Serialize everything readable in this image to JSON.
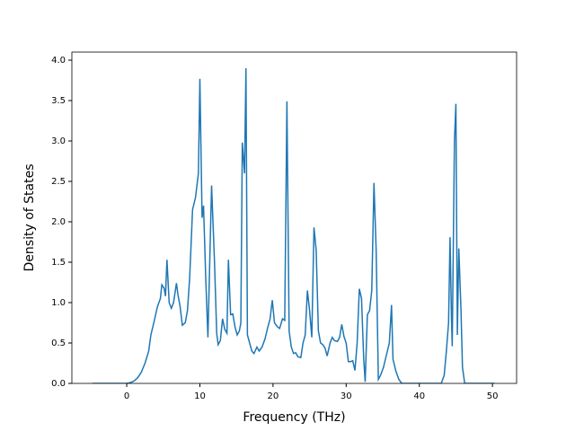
{
  "chart_data": {
    "type": "line",
    "xlabel": "Frequency (THz)",
    "ylabel": "Density of States",
    "xlim": [
      -7.5,
      53.3
    ],
    "ylim": [
      0,
      4.1
    ],
    "xticks": [
      0,
      10,
      20,
      30,
      40,
      50
    ],
    "yticks": [
      {
        "value": 0,
        "label": "0.0"
      },
      {
        "value": 0.5,
        "label": "0.5"
      },
      {
        "value": 1,
        "label": "1.0"
      },
      {
        "value": 1.5,
        "label": "1.5"
      },
      {
        "value": 2,
        "label": "2.0"
      },
      {
        "value": 2.5,
        "label": "2.5"
      },
      {
        "value": 3,
        "label": "3.0"
      },
      {
        "value": 3.5,
        "label": "3.5"
      },
      {
        "value": 4,
        "label": "4.0"
      }
    ],
    "color": "#1f77b4",
    "x": [
      -4.7,
      0,
      0.5,
      1,
      1.5,
      2,
      2.5,
      3,
      3.3,
      3.7,
      4.2,
      4.6,
      4.8,
      5.1,
      5.3,
      5.5,
      5.8,
      6.1,
      6.4,
      6.8,
      7.0,
      7.3,
      7.6,
      8.0,
      8.3,
      8.6,
      9.0,
      9.4,
      9.8,
      10.0,
      10.3,
      10.5,
      10.8,
      11.1,
      11.6,
      12.0,
      12.3,
      12.5,
      12.8,
      13.1,
      13.4,
      13.7,
      13.9,
      14.2,
      14.5,
      14.8,
      15.1,
      15.4,
      15.6,
      15.8,
      16.1,
      16.3,
      16.5,
      16.8,
      17.1,
      17.4,
      17.8,
      18.1,
      18.5,
      18.9,
      19.3,
      19.6,
      19.9,
      20.2,
      20.6,
      20.9,
      21.3,
      21.6,
      21.9,
      22.2,
      22.5,
      22.8,
      23.1,
      23.4,
      23.8,
      24.1,
      24.4,
      24.7,
      25.0,
      25.3,
      25.6,
      25.9,
      26.2,
      26.5,
      26.8,
      27.1,
      27.4,
      27.8,
      28.1,
      28.4,
      28.8,
      29.1,
      29.4,
      29.7,
      30.0,
      30.3,
      30.6,
      30.9,
      31.2,
      31.5,
      31.8,
      32.1,
      32.4,
      32.6,
      32.9,
      33.2,
      33.5,
      33.8,
      34.1,
      34.4,
      34.7,
      35.1,
      35.5,
      35.9,
      36.2,
      36.4,
      36.8,
      37.2,
      37.6,
      43.0,
      43.4,
      43.7,
      44.0,
      44.2,
      44.4,
      44.5,
      44.8,
      45.0,
      45.2,
      45.4,
      45.7,
      45.9,
      46.2,
      50.3
    ],
    "values": [
      0,
      0,
      0.01,
      0.03,
      0.07,
      0.14,
      0.25,
      0.4,
      0.6,
      0.75,
      0.95,
      1.05,
      1.22,
      1.18,
      1.08,
      1.53,
      1.0,
      0.93,
      1.0,
      1.24,
      1.1,
      0.95,
      0.72,
      0.75,
      0.9,
      1.3,
      2.15,
      2.3,
      2.6,
      3.77,
      2.05,
      2.2,
      1.3,
      0.57,
      2.45,
      1.5,
      0.62,
      0.48,
      0.53,
      0.8,
      0.67,
      0.62,
      1.53,
      0.85,
      0.86,
      0.7,
      0.6,
      0.65,
      0.75,
      2.98,
      2.6,
      3.9,
      0.6,
      0.5,
      0.4,
      0.37,
      0.45,
      0.4,
      0.45,
      0.55,
      0.7,
      0.8,
      1.03,
      0.75,
      0.7,
      0.68,
      0.8,
      0.78,
      3.49,
      0.65,
      0.45,
      0.37,
      0.38,
      0.33,
      0.32,
      0.5,
      0.6,
      1.15,
      0.9,
      0.57,
      1.93,
      1.65,
      0.65,
      0.5,
      0.48,
      0.44,
      0.34,
      0.5,
      0.57,
      0.53,
      0.52,
      0.57,
      0.73,
      0.58,
      0.5,
      0.27,
      0.27,
      0.28,
      0.16,
      0.5,
      1.17,
      1.05,
      0.3,
      0.02,
      0.85,
      0.9,
      1.15,
      2.48,
      1.65,
      0.05,
      0.1,
      0.2,
      0.35,
      0.5,
      0.97,
      0.3,
      0.15,
      0.05,
      0,
      0,
      0.1,
      0.4,
      0.75,
      1.81,
      0.8,
      0.46,
      3.0,
      3.46,
      0.6,
      1.67,
      0.9,
      0.2,
      0,
      0
    ]
  }
}
